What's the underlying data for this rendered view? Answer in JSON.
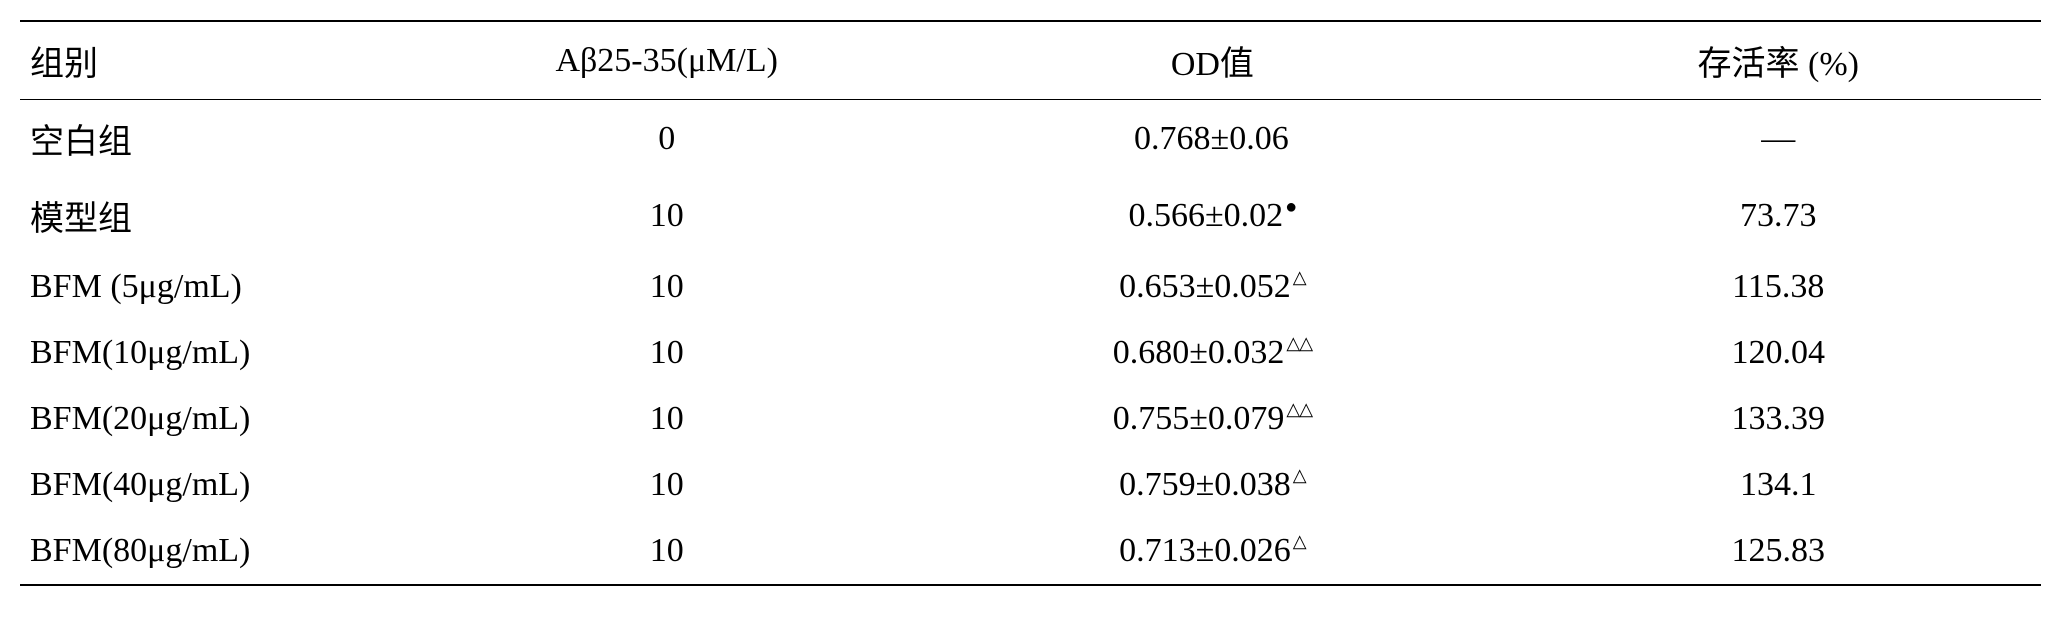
{
  "table": {
    "columns": {
      "group": "组别",
      "concentration": "Aβ25-35(μM/L)",
      "od": "OD值",
      "survival": "存活率 (%)"
    },
    "rows": [
      {
        "group": "空白组",
        "concentration": "0",
        "od_value": "0.768±0.06",
        "od_marker": "",
        "survival": "—"
      },
      {
        "group": "模型组",
        "concentration": "10",
        "od_value": "0.566±0.02",
        "od_marker": "●",
        "survival": "73.73"
      },
      {
        "group": "BFM (5μg/mL)",
        "concentration": "10",
        "od_value": "0.653±0.052",
        "od_marker": "△",
        "survival": "115.38"
      },
      {
        "group": "BFM(10μg/mL)",
        "concentration": "10",
        "od_value": "0.680±0.032",
        "od_marker": "△△",
        "survival": "120.04"
      },
      {
        "group": "BFM(20μg/mL)",
        "concentration": "10",
        "od_value": "0.755±0.079",
        "od_marker": "△△",
        "survival": "133.39"
      },
      {
        "group": "BFM(40μg/mL)",
        "concentration": "10",
        "od_value": "0.759±0.038",
        "od_marker": "△",
        "survival": "134.1"
      },
      {
        "group": "BFM(80μg/mL)",
        "concentration": "10",
        "od_value": "0.713±0.026",
        "od_marker": "△",
        "survival": "125.83"
      }
    ],
    "style": {
      "border_color": "#000000",
      "background_color": "#ffffff",
      "header_fontsize": 34,
      "body_fontsize": 34,
      "marker_fontsize": 20
    }
  }
}
